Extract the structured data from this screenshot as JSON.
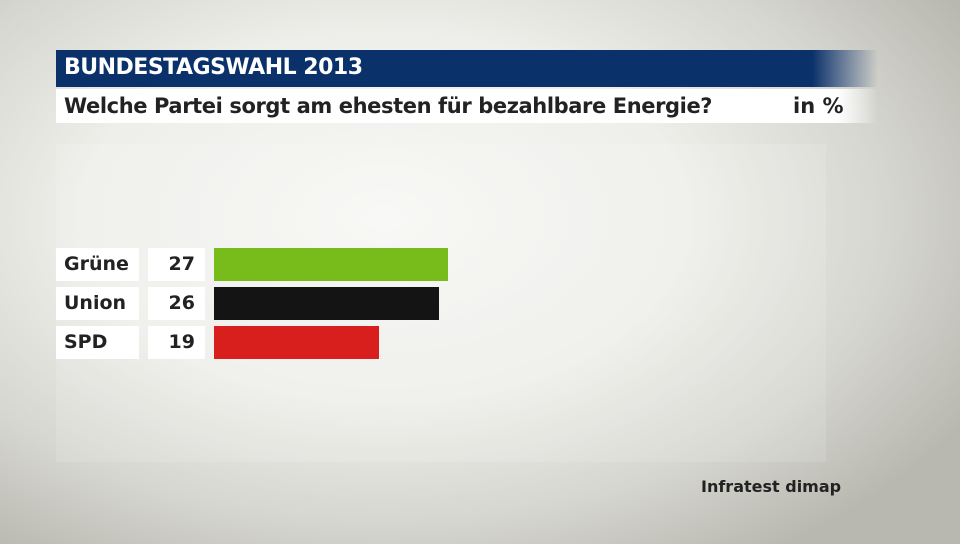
{
  "header": {
    "title": "BUNDESTAGSWAHL 2013",
    "question": "Welche Partei sorgt am ehesten für bezahlbare Energie?",
    "unit": "in %"
  },
  "source": "Infratest dimap",
  "colors": {
    "header_bg": "#0b316b",
    "gruene": "#78bc1b",
    "union": "#141414",
    "spd": "#d91e1e"
  },
  "chart_data": {
    "type": "bar",
    "orientation": "horizontal",
    "title": "Welche Partei sorgt am ehesten für bezahlbare Energie?",
    "subtitle": "BUNDESTAGSWAHL 2013",
    "unit": "in %",
    "categories": [
      "Grüne",
      "Union",
      "SPD"
    ],
    "values": [
      27,
      26,
      19
    ],
    "colors": [
      "#78bc1b",
      "#141414",
      "#d91e1e"
    ],
    "xlabel": "",
    "ylabel": "",
    "grid": false,
    "legend": "none",
    "source": "Infratest dimap"
  }
}
